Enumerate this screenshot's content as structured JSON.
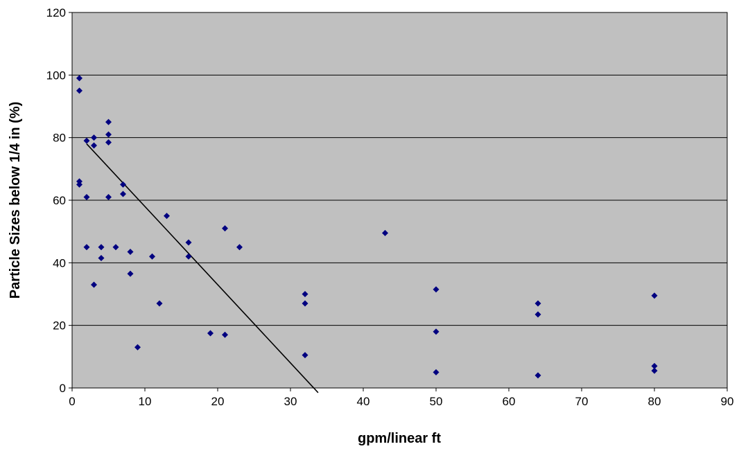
{
  "chart_data": {
    "type": "scatter",
    "title": "",
    "xlabel": "gpm/linear ft",
    "ylabel": "Particle Sizes below 1/4 in (%)",
    "xlim": [
      0,
      90
    ],
    "ylim": [
      0,
      120
    ],
    "x_ticks": [
      0,
      10,
      20,
      30,
      40,
      50,
      60,
      70,
      80,
      90
    ],
    "y_ticks": [
      0,
      20,
      40,
      60,
      80,
      100,
      120
    ],
    "grid": "horizontal",
    "legend": "none",
    "colors": {
      "plot_background": "#c0c0c0",
      "marker": "#000080",
      "trendline": "#000000",
      "gridline": "#000000"
    },
    "series": [
      {
        "points": [
          [
            1,
            99
          ],
          [
            1,
            95
          ],
          [
            1,
            66
          ],
          [
            1,
            65
          ],
          [
            2,
            79
          ],
          [
            2,
            61
          ],
          [
            2,
            45
          ],
          [
            3,
            80
          ],
          [
            3,
            77.5
          ],
          [
            3,
            33
          ],
          [
            4,
            45
          ],
          [
            4,
            41.5
          ],
          [
            5,
            85
          ],
          [
            5,
            81
          ],
          [
            5,
            78.5
          ],
          [
            5,
            61
          ],
          [
            6,
            45
          ],
          [
            7,
            65
          ],
          [
            7,
            62
          ],
          [
            8,
            43.5
          ],
          [
            8,
            36.5
          ],
          [
            9,
            13
          ],
          [
            11,
            42
          ],
          [
            12,
            27
          ],
          [
            13,
            55
          ],
          [
            16,
            46.5
          ],
          [
            16,
            42
          ],
          [
            19,
            17.5
          ],
          [
            21,
            51
          ],
          [
            21,
            17
          ],
          [
            23,
            45
          ],
          [
            32,
            30
          ],
          [
            32,
            27
          ],
          [
            32,
            10.5
          ],
          [
            43,
            49.5
          ],
          [
            50,
            31.5
          ],
          [
            50,
            18
          ],
          [
            50,
            5
          ],
          [
            64,
            27
          ],
          [
            64,
            23.5
          ],
          [
            64,
            4
          ],
          [
            80,
            29.5
          ],
          [
            80,
            7
          ],
          [
            80,
            5.5
          ]
        ]
      }
    ],
    "trendline": {
      "type": "linear",
      "x_start": 2,
      "y_start": 78,
      "x_end": 33.8,
      "y_end": -1.5
    }
  }
}
